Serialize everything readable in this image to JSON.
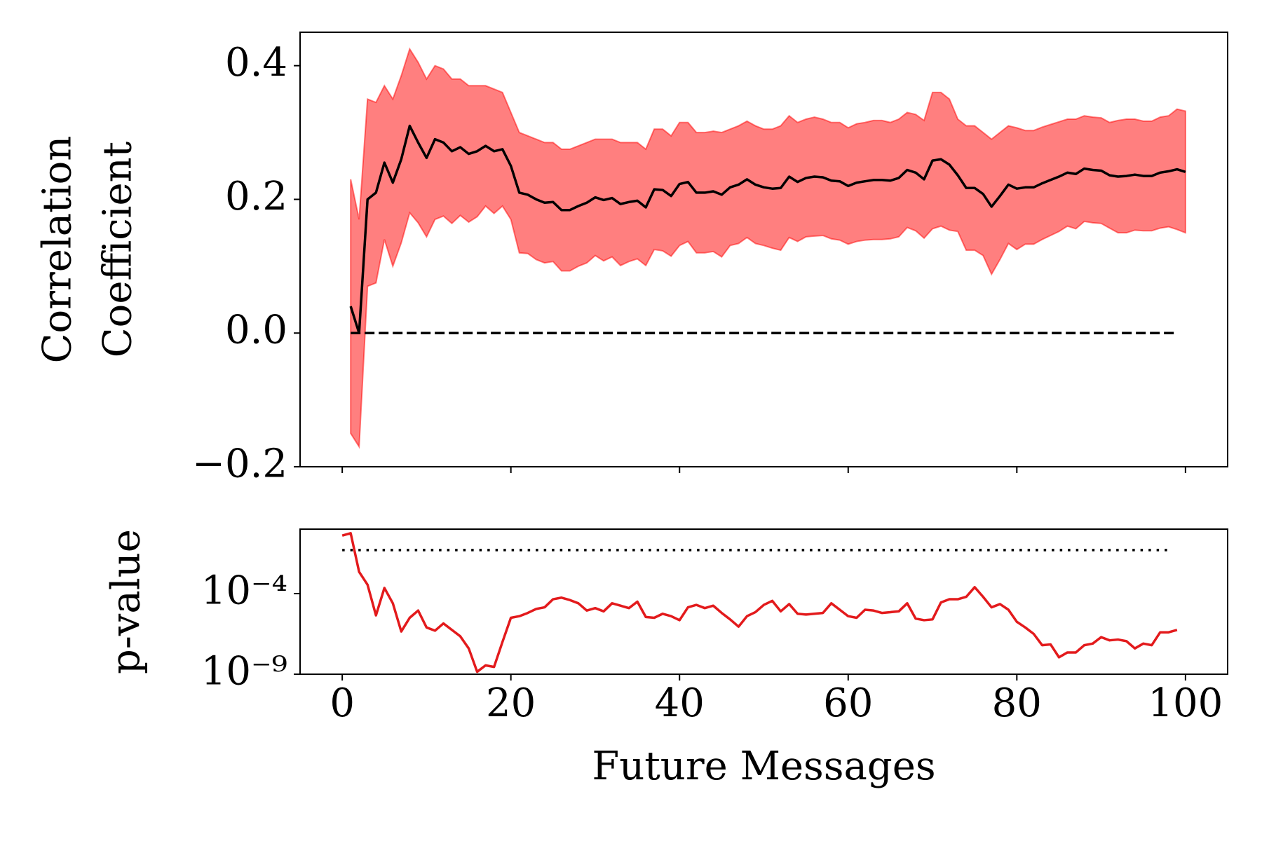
{
  "chart_data": [
    {
      "type": "line",
      "ylabel": [
        "Correlation",
        "Coefficient"
      ],
      "xlim": [
        -5,
        105
      ],
      "xticks": [
        0,
        20,
        40,
        60,
        80,
        100
      ],
      "ylim": [
        -0.2,
        0.45
      ],
      "yticks": [
        {
          "value": -0.2,
          "label": "−0.2"
        },
        {
          "value": 0,
          "label": "0.0"
        },
        0.2,
        0.4
      ],
      "x": [
        1,
        2,
        3,
        4,
        5,
        6,
        7,
        8,
        9,
        10,
        11,
        12,
        13,
        14,
        15,
        16,
        17,
        18,
        19,
        20,
        21,
        22,
        23,
        24,
        25,
        26,
        27,
        28,
        29,
        30,
        31,
        32,
        33,
        34,
        35,
        36,
        37,
        38,
        39,
        40,
        41,
        42,
        43,
        44,
        45,
        46,
        47,
        48,
        49,
        50,
        51,
        52,
        53,
        54,
        55,
        56,
        57,
        58,
        59,
        60,
        61,
        62,
        63,
        64,
        65,
        66,
        67,
        68,
        69,
        70,
        71,
        72,
        73,
        74,
        75,
        76,
        77,
        78,
        79,
        80,
        81,
        82,
        83,
        84,
        85,
        86,
        87,
        88,
        89,
        90,
        91,
        92,
        93,
        94,
        95,
        96,
        97,
        98,
        99,
        100
      ],
      "band": {
        "color": "#ff0000",
        "upper": [
          0.23,
          0.17,
          0.35,
          0.345,
          0.37,
          0.35,
          0.385,
          0.425,
          0.405,
          0.38,
          0.4,
          0.395,
          0.38,
          0.38,
          0.37,
          0.37,
          0.37,
          0.365,
          0.36,
          0.33,
          0.3,
          0.295,
          0.29,
          0.285,
          0.285,
          0.275,
          0.275,
          0.28,
          0.285,
          0.29,
          0.29,
          0.29,
          0.285,
          0.285,
          0.285,
          0.275,
          0.305,
          0.305,
          0.295,
          0.315,
          0.315,
          0.3,
          0.3,
          0.302,
          0.3,
          0.305,
          0.31,
          0.317,
          0.31,
          0.305,
          0.305,
          0.31,
          0.325,
          0.315,
          0.32,
          0.323,
          0.32,
          0.315,
          0.315,
          0.307,
          0.313,
          0.315,
          0.318,
          0.318,
          0.315,
          0.32,
          0.33,
          0.327,
          0.318,
          0.36,
          0.36,
          0.35,
          0.32,
          0.31,
          0.31,
          0.3,
          0.29,
          0.3,
          0.31,
          0.307,
          0.303,
          0.303,
          0.308,
          0.312,
          0.316,
          0.32,
          0.32,
          0.325,
          0.323,
          0.322,
          0.315,
          0.318,
          0.32,
          0.32,
          0.317,
          0.317,
          0.323,
          0.325,
          0.335,
          0.332
        ],
        "lower": [
          -0.15,
          -0.17,
          0.07,
          0.075,
          0.14,
          0.1,
          0.135,
          0.18,
          0.165,
          0.144,
          0.17,
          0.175,
          0.164,
          0.176,
          0.166,
          0.174,
          0.19,
          0.179,
          0.19,
          0.17,
          0.12,
          0.119,
          0.11,
          0.105,
          0.107,
          0.093,
          0.093,
          0.1,
          0.105,
          0.116,
          0.108,
          0.114,
          0.101,
          0.107,
          0.111,
          0.101,
          0.125,
          0.123,
          0.115,
          0.131,
          0.137,
          0.12,
          0.12,
          0.122,
          0.114,
          0.131,
          0.134,
          0.143,
          0.134,
          0.131,
          0.127,
          0.124,
          0.143,
          0.137,
          0.144,
          0.145,
          0.146,
          0.141,
          0.139,
          0.133,
          0.137,
          0.139,
          0.14,
          0.14,
          0.141,
          0.144,
          0.158,
          0.153,
          0.142,
          0.156,
          0.16,
          0.154,
          0.152,
          0.124,
          0.124,
          0.116,
          0.088,
          0.11,
          0.134,
          0.125,
          0.133,
          0.133,
          0.14,
          0.146,
          0.152,
          0.16,
          0.156,
          0.167,
          0.165,
          0.164,
          0.157,
          0.15,
          0.15,
          0.154,
          0.153,
          0.153,
          0.157,
          0.159,
          0.155,
          0.15
        ]
      },
      "series": [
        {
          "color": "#000000",
          "values": [
            0.04,
            0.0,
            0.2,
            0.21,
            0.255,
            0.225,
            0.26,
            0.31,
            0.285,
            0.262,
            0.29,
            0.285,
            0.272,
            0.278,
            0.268,
            0.272,
            0.28,
            0.272,
            0.275,
            0.25,
            0.21,
            0.207,
            0.2,
            0.195,
            0.196,
            0.184,
            0.184,
            0.19,
            0.195,
            0.203,
            0.199,
            0.202,
            0.193,
            0.196,
            0.198,
            0.188,
            0.215,
            0.214,
            0.205,
            0.223,
            0.226,
            0.21,
            0.21,
            0.212,
            0.207,
            0.218,
            0.222,
            0.23,
            0.222,
            0.218,
            0.216,
            0.217,
            0.234,
            0.226,
            0.232,
            0.234,
            0.233,
            0.228,
            0.227,
            0.22,
            0.225,
            0.227,
            0.229,
            0.229,
            0.228,
            0.232,
            0.244,
            0.24,
            0.23,
            0.258,
            0.26,
            0.252,
            0.236,
            0.217,
            0.217,
            0.208,
            0.189,
            0.205,
            0.222,
            0.216,
            0.218,
            0.218,
            0.224,
            0.229,
            0.234,
            0.24,
            0.238,
            0.246,
            0.244,
            0.243,
            0.236,
            0.234,
            0.235,
            0.237,
            0.235,
            0.235,
            0.24,
            0.242,
            0.245,
            0.241
          ]
        }
      ],
      "hline": {
        "value": 0,
        "xmin": 1,
        "xmax": 99,
        "style": "dashed",
        "color": "#000000"
      }
    },
    {
      "type": "line",
      "ylabel": "p-value",
      "xlabel": "Future Messages",
      "xlim": [
        -5,
        105
      ],
      "xticks": [
        0,
        20,
        40,
        60,
        80,
        100
      ],
      "ylog": true,
      "ylim": [
        1e-09,
        1
      ],
      "yticks": [
        {
          "value": 1e-09,
          "label": "10⁻⁹"
        },
        {
          "value": 0.0001,
          "label": "10⁻⁴"
        }
      ],
      "x": [
        0,
        1,
        2,
        3,
        4,
        5,
        6,
        7,
        8,
        9,
        10,
        11,
        12,
        13,
        14,
        15,
        16,
        17,
        18,
        19,
        20,
        21,
        22,
        23,
        24,
        25,
        26,
        27,
        28,
        29,
        30,
        31,
        32,
        33,
        34,
        35,
        36,
        37,
        38,
        39,
        40,
        41,
        42,
        43,
        44,
        45,
        46,
        47,
        48,
        49,
        50,
        51,
        52,
        53,
        54,
        55,
        56,
        57,
        58,
        59,
        60,
        61,
        62,
        63,
        64,
        65,
        66,
        67,
        68,
        69,
        70,
        71,
        72,
        73,
        74,
        75,
        76,
        77,
        78,
        79,
        80,
        81,
        82,
        83,
        84,
        85,
        86,
        87,
        88,
        89,
        90,
        91,
        92,
        93,
        94,
        95,
        96,
        97,
        98,
        99
      ],
      "series": [
        {
          "color": "#e31a1c",
          "values": [
            0.398,
            0.562,
            0.00224,
            0.000355,
            4.47e-06,
            0.000224,
            2.51e-05,
            4.47e-07,
            3.16e-06,
            8.91e-06,
            7.94e-07,
            5.01e-07,
            1.41e-06,
            5.62e-07,
            2.24e-07,
            3.98e-08,
            1.41e-09,
            3.55e-09,
            2.82e-09,
            1e-07,
            3.16e-06,
            3.98e-06,
            6.31e-06,
            1.12e-05,
            1.41e-05,
            4.47e-05,
            5.62e-05,
            3.98e-05,
            2.51e-05,
            8.91e-06,
            1.26e-05,
            7.94e-06,
            2.51e-05,
            1.78e-05,
            1.26e-05,
            3.16e-05,
            3.55e-06,
            3.16e-06,
            5.62e-06,
            3.98e-06,
            2.24e-06,
            1.41e-05,
            2e-05,
            1.26e-05,
            1.78e-05,
            6.31e-06,
            2.51e-06,
            8.91e-07,
            3.98e-06,
            7.08e-06,
            2e-05,
            3.55e-05,
            7.94e-06,
            2.24e-05,
            5.62e-06,
            5.01e-06,
            5.62e-06,
            6.31e-06,
            2.51e-05,
            1e-05,
            3.98e-06,
            3.16e-06,
            1e-05,
            8.91e-06,
            6.31e-06,
            7.08e-06,
            7.94e-06,
            2.51e-05,
            2.82e-06,
            2.24e-06,
            2.51e-06,
            2.82e-05,
            4.47e-05,
            4.47e-05,
            6.31e-05,
            0.000251,
            6.31e-05,
            1.41e-05,
            2.24e-05,
            1e-05,
            1.78e-06,
            7.94e-07,
            3.16e-07,
            6.31e-08,
            7.08e-08,
            1.12e-08,
            2.24e-08,
            2.24e-08,
            6.31e-08,
            7.94e-08,
            2e-07,
            1.26e-07,
            1.41e-07,
            1.12e-07,
            3.98e-08,
            7.94e-08,
            6.31e-08,
            3.98e-07,
            3.98e-07,
            5.62e-07
          ]
        }
      ],
      "hline": {
        "value": 0.05,
        "xmin": 0,
        "xmax": 98,
        "style": "dotted",
        "color": "#000000"
      }
    }
  ]
}
